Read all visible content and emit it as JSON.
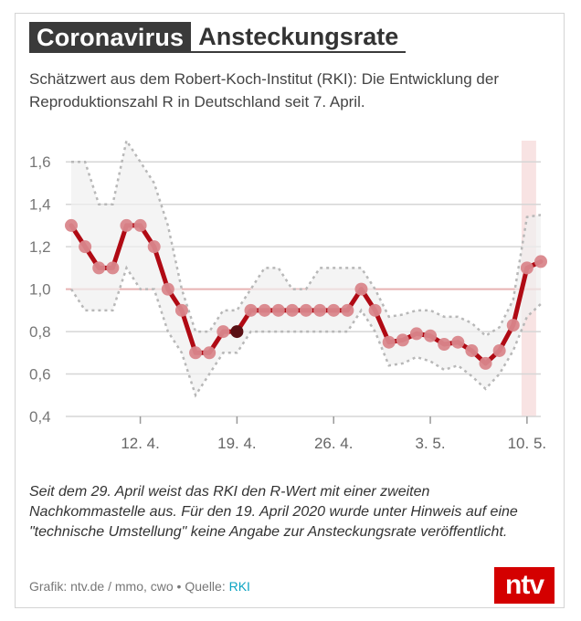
{
  "header": {
    "tag": "Coronavirus",
    "title": "Ansteckungsrate"
  },
  "subtitle": "Schätzwert aus dem Robert-Koch-Institut (RKI): Die Entwicklung der Reproduktionszahl R in Deutschland seit 7. April.",
  "chart_data": {
    "type": "line",
    "title": "",
    "xlabel": "",
    "ylabel": "",
    "ylim": [
      0.4,
      1.7
    ],
    "yticks": [
      "0,4",
      "0,6",
      "0,8",
      "1,0",
      "1,2",
      "1,4",
      "1,6"
    ],
    "ytick_values": [
      0.4,
      0.6,
      0.8,
      1.0,
      1.2,
      1.4,
      1.6
    ],
    "xticks": [
      {
        "day": 5,
        "label": "12. 4."
      },
      {
        "day": 12,
        "label": "19. 4."
      },
      {
        "day": 19,
        "label": "26. 4."
      },
      {
        "day": 26,
        "label": "3. 5."
      },
      {
        "day": 33,
        "label": "10. 5."
      }
    ],
    "x_start": "7. April",
    "reference_line": 1.0,
    "highlight_day": 33,
    "missing_day": 12,
    "series": [
      {
        "name": "R-Wert",
        "color": "#b00a14",
        "values": [
          1.3,
          1.2,
          1.1,
          1.1,
          1.3,
          1.3,
          1.2,
          1.0,
          0.9,
          0.7,
          0.7,
          0.8,
          0.8,
          0.9,
          0.9,
          0.9,
          0.9,
          0.9,
          0.9,
          0.9,
          0.9,
          1.0,
          0.9,
          0.75,
          0.76,
          0.79,
          0.78,
          0.74,
          0.75,
          0.71,
          0.65,
          0.71,
          0.83,
          1.1,
          1.13
        ]
      },
      {
        "name": "Obergrenze",
        "color": "#b8b8b8",
        "values": [
          1.6,
          1.6,
          1.4,
          1.4,
          1.7,
          1.6,
          1.5,
          1.3,
          1.0,
          0.8,
          0.8,
          0.9,
          0.9,
          1.0,
          1.1,
          1.1,
          1.0,
          1.0,
          1.1,
          1.1,
          1.1,
          1.1,
          1.0,
          0.87,
          0.88,
          0.9,
          0.9,
          0.87,
          0.87,
          0.84,
          0.78,
          0.82,
          0.95,
          1.34,
          1.35
        ]
      },
      {
        "name": "Untergrenze",
        "color": "#b8b8b8",
        "values": [
          1.0,
          0.9,
          0.9,
          0.9,
          1.1,
          1.0,
          1.0,
          0.8,
          0.7,
          0.5,
          0.6,
          0.7,
          0.7,
          0.8,
          0.8,
          0.8,
          0.8,
          0.8,
          0.8,
          0.8,
          0.8,
          0.9,
          0.8,
          0.64,
          0.65,
          0.68,
          0.66,
          0.62,
          0.64,
          0.59,
          0.53,
          0.6,
          0.71,
          0.87,
          0.93
        ]
      }
    ]
  },
  "footnote": "Seit dem 29. April weist das RKI den R-Wert mit einer zweiten Nachkommastelle aus. Für den 19. April 2020 wurde unter Hinweis auf eine \"technische Umstellung\" keine Angabe zur Ansteckungsrate veröffentlicht.",
  "credit": {
    "prefix": "Grafik: ntv.de / mmo, cwo • Quelle: ",
    "source": "RKI"
  },
  "logo": {
    "text": "ntv",
    "color": "#d40000"
  }
}
